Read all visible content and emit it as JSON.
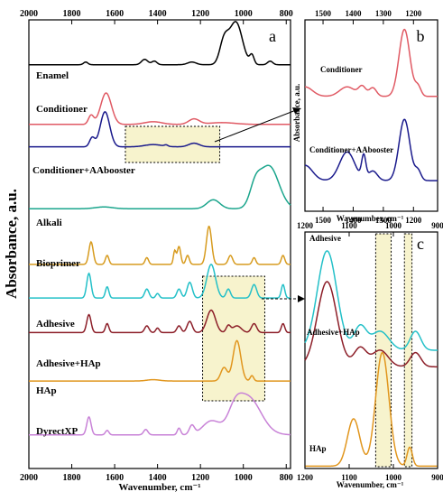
{
  "figure": {
    "ylabel": "Absorbance, a.u.",
    "xunit_label": "Wavenumber, cm⁻¹"
  },
  "colors": {
    "enamel": "#000000",
    "conditioner": "#e05a64",
    "conditioner_aa": "#1a1a8c",
    "alkali": "#1aa58c",
    "bioprimer": "#d79b1e",
    "adhesive": "#23c0c8",
    "adhesive_hap": "#8c1e28",
    "hap": "#e1961e",
    "dyrectxp": "#c882d7",
    "highlight_fill": "#f5f0c0"
  },
  "chart_data": [
    {
      "panel": "a",
      "type": "line",
      "xlabel": "Wavenumber, cm⁻¹",
      "ylabel": "Absorbance, a.u.",
      "xlim": [
        2000,
        780
      ],
      "xticks": [
        2000,
        1800,
        1600,
        1400,
        1200,
        1000,
        800
      ],
      "highlights": [
        {
          "x": [
            1550,
            1110
          ],
          "style": "dotted-box-filled"
        },
        {
          "x": [
            1190,
            900
          ],
          "style": "dotted-box-filled"
        }
      ],
      "series": [
        {
          "name": "Enamel",
          "color_key": "enamel",
          "baseline": 0.9,
          "peaks": [
            [
              1735,
              10,
              0.006
            ],
            [
              1460,
              15,
              0.012
            ],
            [
              1415,
              12,
              0.008
            ],
            [
              1240,
              20,
              0.006
            ],
            [
              1090,
              20,
              0.05
            ],
            [
              1035,
              30,
              0.095
            ],
            [
              960,
              10,
              0.02
            ],
            [
              875,
              12,
              0.008
            ]
          ]
        },
        {
          "name": "Conditioner",
          "color_key": "conditioner",
          "baseline": 0.767,
          "peaks": [
            [
              1640,
              25,
              0.07
            ],
            [
              1710,
              12,
              0.02
            ],
            [
              1420,
              40,
              0.006
            ],
            [
              1230,
              25,
              0.012
            ],
            [
              1100,
              60,
              0.004
            ]
          ]
        },
        {
          "name": "Conditioner+AAbooster",
          "color_key": "conditioner_aa",
          "baseline": 0.717,
          "peaks": [
            [
              1645,
              22,
              0.078
            ],
            [
              1705,
              12,
              0.02
            ],
            [
              1420,
              40,
              0.005
            ],
            [
              1360,
              8,
              0.003
            ],
            [
              1230,
              25,
              0.008
            ]
          ]
        },
        {
          "name": "Alkali",
          "color_key": "alkali",
          "baseline": 0.579,
          "peaks": [
            [
              880,
              45,
              0.095
            ],
            [
              945,
              25,
              0.04
            ],
            [
              1140,
              30,
              0.02
            ],
            [
              1650,
              40,
              0.004
            ]
          ]
        },
        {
          "name": "Bioprimer",
          "color_key": "bioprimer",
          "baseline": 0.455,
          "peaks": [
            [
              1710,
              10,
              0.05
            ],
            [
              1635,
              8,
              0.02
            ],
            [
              1450,
              8,
              0.015
            ],
            [
              1300,
              8,
              0.04
            ],
            [
              1320,
              6,
              0.03
            ],
            [
              1260,
              8,
              0.02
            ],
            [
              1160,
              12,
              0.085
            ],
            [
              1060,
              10,
              0.02
            ],
            [
              950,
              8,
              0.015
            ],
            [
              815,
              8,
              0.02
            ]
          ]
        },
        {
          "name": "Adhesive",
          "color_key": "adhesive",
          "baseline": 0.38,
          "peaks": [
            [
              1720,
              10,
              0.055
            ],
            [
              1635,
              8,
              0.025
            ],
            [
              1450,
              10,
              0.02
            ],
            [
              1400,
              8,
              0.01
            ],
            [
              1300,
              10,
              0.02
            ],
            [
              1250,
              12,
              0.035
            ],
            [
              1150,
              20,
              0.075
            ],
            [
              1070,
              10,
              0.02
            ],
            [
              950,
              12,
              0.03
            ],
            [
              815,
              8,
              0.03
            ]
          ]
        },
        {
          "name": "Adhesive+HAp",
          "color_key": "adhesive_hap",
          "baseline": 0.303,
          "peaks": [
            [
              1720,
              10,
              0.04
            ],
            [
              1635,
              8,
              0.02
            ],
            [
              1450,
              10,
              0.015
            ],
            [
              1400,
              8,
              0.01
            ],
            [
              1300,
              10,
              0.015
            ],
            [
              1250,
              12,
              0.025
            ],
            [
              1150,
              20,
              0.05
            ],
            [
              1070,
              10,
              0.015
            ],
            [
              1030,
              20,
              0.015
            ],
            [
              950,
              12,
              0.02
            ],
            [
              815,
              8,
              0.02
            ]
          ]
        },
        {
          "name": "HAp",
          "color_key": "hap",
          "baseline": 0.195,
          "peaks": [
            [
              1030,
              18,
              0.09
            ],
            [
              1090,
              15,
              0.03
            ],
            [
              960,
              8,
              0.012
            ],
            [
              1420,
              30,
              0.003
            ]
          ]
        },
        {
          "name": "DyrectXP",
          "color_key": "dyrectxp",
          "baseline": 0.075,
          "peaks": [
            [
              1720,
              10,
              0.04
            ],
            [
              1635,
              8,
              0.01
            ],
            [
              1455,
              10,
              0.012
            ],
            [
              1300,
              8,
              0.015
            ],
            [
              1240,
              12,
              0.02
            ],
            [
              1150,
              40,
              0.03
            ],
            [
              980,
              60,
              0.085
            ],
            [
              1040,
              30,
              0.03
            ]
          ]
        }
      ]
    },
    {
      "panel": "b",
      "type": "line",
      "xlabel": "Wavenumber, cm⁻¹",
      "ylabel": "Absorbance, a.u.",
      "xlim": [
        1560,
        1120
      ],
      "xticks": [
        1500,
        1400,
        1300,
        1200
      ],
      "series": [
        {
          "name": "Conditioner",
          "color_key": "conditioner",
          "baseline": 0.6,
          "peaks": [
            [
              1560,
              25,
              0.05
            ],
            [
              1420,
              25,
              0.05
            ],
            [
              1370,
              12,
              0.05
            ],
            [
              1335,
              12,
              0.045
            ],
            [
              1230,
              18,
              0.35
            ],
            [
              1185,
              10,
              0.05
            ]
          ]
        },
        {
          "name": "Conditioner+AAbooster",
          "color_key": "conditioner_aa",
          "baseline": 0.16,
          "peaks": [
            [
              1560,
              25,
              0.08
            ],
            [
              1420,
              25,
              0.15
            ],
            [
              1365,
              7,
              0.12
            ],
            [
              1335,
              15,
              0.05
            ],
            [
              1230,
              18,
              0.32
            ],
            [
              1185,
              10,
              0.05
            ]
          ]
        }
      ]
    },
    {
      "panel": "c",
      "type": "line",
      "xlabel": "Wavenumber, cm⁻¹",
      "ylabel": "",
      "xlim": [
        1200,
        900
      ],
      "xticks": [
        1200,
        1100,
        1000,
        900
      ],
      "highlights": [
        {
          "x": [
            1040,
            1005
          ],
          "style": "dotted-box-filled"
        },
        {
          "x": [
            975,
            958
          ],
          "style": "dotted-box-filled"
        }
      ],
      "series": [
        {
          "name": "Adhesive",
          "color_key": "adhesive",
          "baseline": 0.5,
          "peaks": [
            [
              1150,
              22,
              0.42
            ],
            [
              1075,
              14,
              0.1
            ],
            [
              1030,
              20,
              0.08
            ],
            [
              950,
              12,
              0.08
            ]
          ]
        },
        {
          "name": "Adhesive+HAp",
          "color_key": "adhesive_hap",
          "baseline": 0.43,
          "peaks": [
            [
              1150,
              22,
              0.36
            ],
            [
              1075,
              14,
              0.08
            ],
            [
              1030,
              18,
              0.07
            ],
            [
              950,
              12,
              0.06
            ]
          ]
        },
        {
          "name": "HAp",
          "color_key": "hap",
          "baseline": 0.01,
          "peaks": [
            [
              1025,
              15,
              0.48
            ],
            [
              1090,
              14,
              0.2
            ],
            [
              963,
              6,
              0.08
            ]
          ]
        }
      ]
    }
  ],
  "labels_a": [
    "Enamel",
    "Conditioner",
    "Conditioner+AAbooster",
    "Alkali",
    "Bioprimer",
    "Adhesive",
    "Adhesive+HAp",
    "HAp",
    "DyrectXP"
  ],
  "labels_b": [
    "Conditioner",
    "Conditioner+AAbooster"
  ],
  "labels_c": [
    "Adhesive",
    "Adhesive+HAp",
    "HAp"
  ],
  "panel_letters": {
    "a": "a",
    "b": "b",
    "c": "c"
  }
}
